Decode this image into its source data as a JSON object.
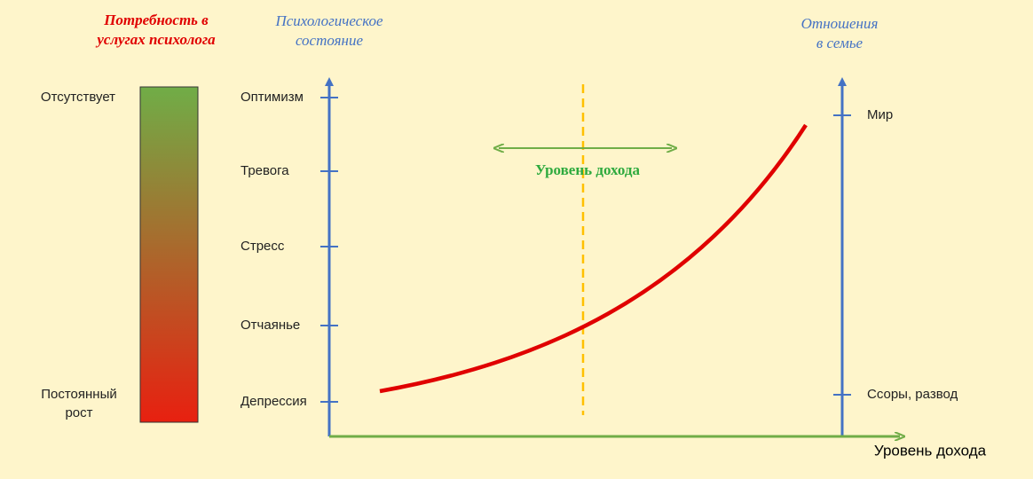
{
  "need_title": {
    "lines": [
      "Потребность в",
      "услугах психолога"
    ]
  },
  "need_scale": {
    "top": "Отсутствует",
    "bottom": {
      "lines": [
        "Постоянный",
        "рост"
      ]
    }
  },
  "psych_title": {
    "lines": [
      "Психологическое",
      "состояние"
    ]
  },
  "psych_levels": [
    "Оптимизм",
    "Тревога",
    "Стресс",
    "Отчаянье",
    "Депрессия"
  ],
  "family_title": {
    "lines": [
      "Отношения",
      "в семье"
    ]
  },
  "family_levels": [
    "Мир",
    "Ссоры, развод"
  ],
  "income_marker": "Уровень дохода",
  "x_axis_label": "Уровень дохода"
}
